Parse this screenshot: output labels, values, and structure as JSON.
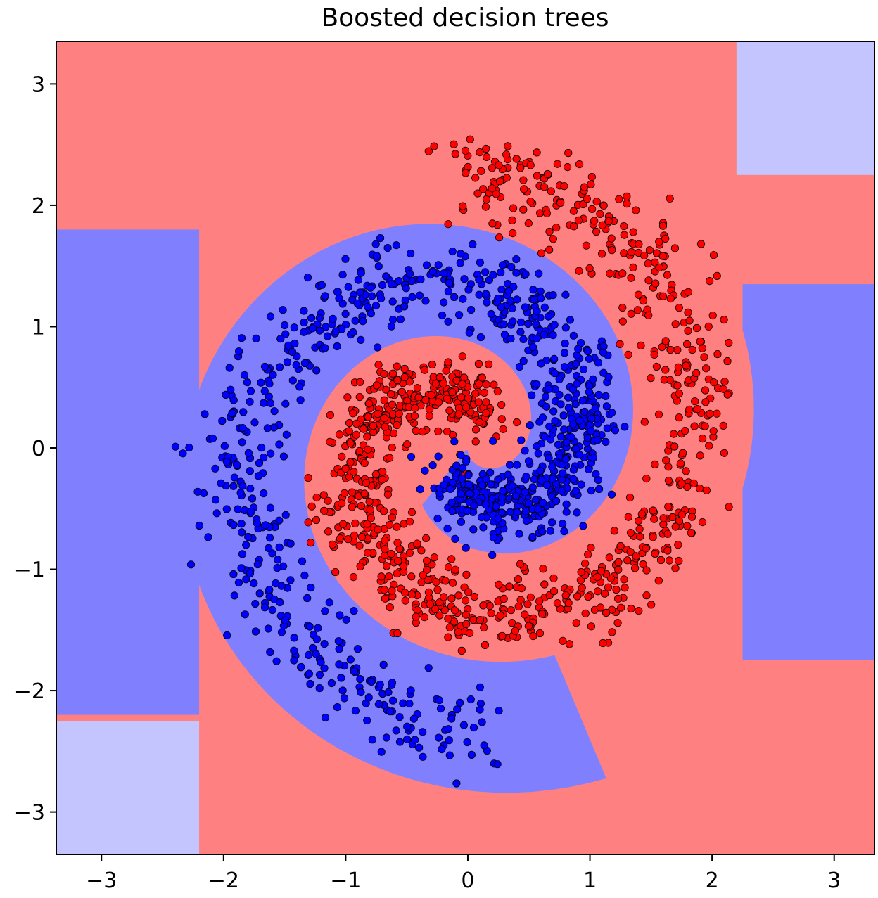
{
  "chart_data": {
    "type": "scatter",
    "title": "Boosted decision trees",
    "xlabel": "",
    "ylabel": "",
    "xlim": [
      -3.37,
      3.33
    ],
    "ylim": [
      -3.35,
      3.35
    ],
    "xticks": [
      -3,
      -2,
      -1,
      0,
      1,
      2,
      3
    ],
    "yticks": [
      -3,
      -2,
      -1,
      0,
      1,
      2,
      3
    ],
    "xtick_labels": [
      "−3",
      "−2",
      "−1",
      "0",
      "1",
      "2",
      "3"
    ],
    "ytick_labels": [
      "−3",
      "−2",
      "−1",
      "0",
      "1",
      "2",
      "3"
    ],
    "background": "decision surface (coolwarm): red class region vs blue class region",
    "colors": {
      "red_class": "#ff0000",
      "blue_class": "#0000ff",
      "red_region": "#ff8080",
      "blue_region": "#8080ff",
      "light_blue_region": "#c4c4ff"
    },
    "grid": false,
    "legend": "none",
    "series": [
      {
        "class": "red-spiral-arm",
        "spiral_theta_start": 1.2,
        "spiral_theta_end": 7.9,
        "spiral_radius_start": 0.3,
        "spiral_radius_end": 2.3
      },
      {
        "class": "blue-spiral-arm",
        "spiral_theta_start": 4.34,
        "spiral_theta_end": 11.04,
        "spiral_radius_start": 0.3,
        "spiral_radius_end": 2.3
      }
    ],
    "approx_points_per_class": 1000
  }
}
